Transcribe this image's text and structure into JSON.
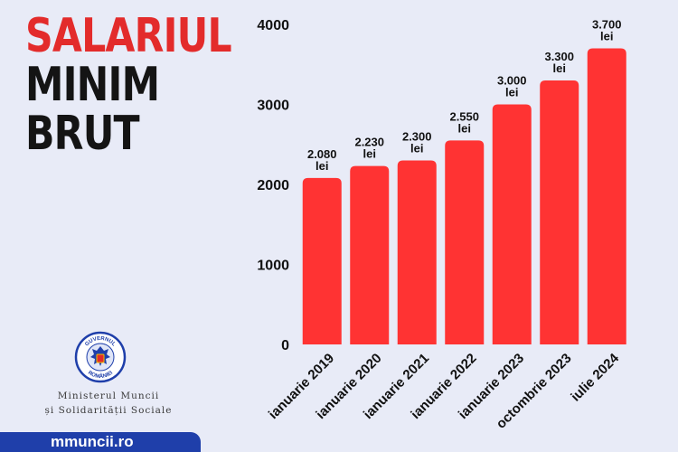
{
  "header": {
    "title_line1": "SALARIUL",
    "title_line2": "MINIM",
    "title_line3": "BRUT"
  },
  "colors": {
    "accent_red": "#e32b2b",
    "bar_red": "#ff3333",
    "title_dark": "#141414",
    "badge_blue": "#1f3faa",
    "background": "#e8ebf7"
  },
  "chart_data": {
    "type": "bar",
    "categories": [
      "ianuarie 2019",
      "ianuarie 2020",
      "ianuarie 2021",
      "ianuarie 2022",
      "ianuarie 2023",
      "octombrie 2023",
      "iulie 2024"
    ],
    "values": [
      2080,
      2230,
      2300,
      2550,
      3000,
      3300,
      3700
    ],
    "value_labels": [
      "2.080",
      "2.230",
      "2.300",
      "2.550",
      "3.000",
      "3.300",
      "3.700"
    ],
    "unit_label": "lei",
    "title": "",
    "xlabel": "",
    "ylabel": "",
    "ylim": [
      0,
      4000
    ],
    "yticks": [
      0,
      1000,
      2000,
      3000,
      4000
    ],
    "grid": false,
    "legend": "none"
  },
  "footer": {
    "logo_icon": "guvernul-romaniei-seal-icon",
    "logo_text_top": "GUVERNUL",
    "logo_text_bottom": "ROMÂNIEI",
    "ministry_line1": "Ministerul Muncii",
    "ministry_line2": "și Solidarității Sociale",
    "website": "mmuncii.ro"
  }
}
